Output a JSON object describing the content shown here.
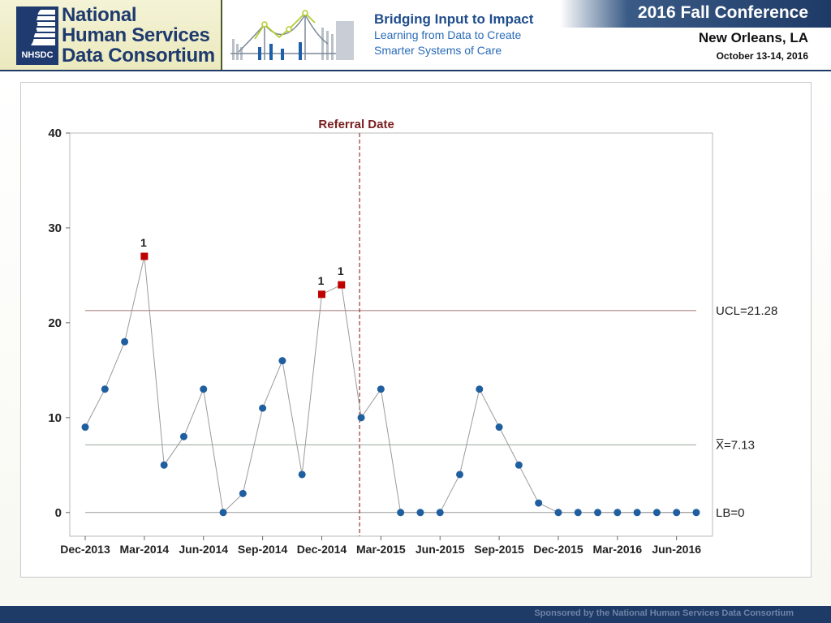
{
  "header": {
    "logo_lines": [
      "National",
      "Human Services",
      "Data Consortium"
    ],
    "logo_badge": "NHSDC",
    "tagline_title": "Bridging Input to Impact",
    "tagline_line2": "Learning from Data to Create",
    "tagline_line3": "Smarter Systems of Care",
    "conference_title": "2016 Fall Conference",
    "location": "New Orleans, LA",
    "dates": "October 13-14, 2016"
  },
  "footer": {
    "text": "Sponsored by the National Human Services Data Consortium"
  },
  "chart_data": {
    "type": "line",
    "title": "",
    "xlabel": "",
    "ylabel": "",
    "ylim": [
      -2.5,
      40
    ],
    "yticks": [
      0,
      10,
      20,
      30,
      40
    ],
    "x_ticks": [
      {
        "label": "Dec-2013",
        "index": 0
      },
      {
        "label": "Mar-2014",
        "index": 3
      },
      {
        "label": "Jun-2014",
        "index": 6
      },
      {
        "label": "Sep-2014",
        "index": 9
      },
      {
        "label": "Dec-2014",
        "index": 12
      },
      {
        "label": "Mar-2015",
        "index": 15
      },
      {
        "label": "Jun-2015",
        "index": 18
      },
      {
        "label": "Sep-2015",
        "index": 21
      },
      {
        "label": "Dec-2015",
        "index": 24
      },
      {
        "label": "Mar-2016",
        "index": 27
      },
      {
        "label": "Jun-2016",
        "index": 30
      }
    ],
    "values": [
      9,
      13,
      18,
      27,
      5,
      8,
      13,
      0,
      2,
      11,
      16,
      4,
      23,
      24,
      10,
      13,
      0,
      0,
      0,
      4,
      13,
      9,
      5,
      1,
      0,
      0,
      0,
      0,
      0,
      0,
      0,
      0
    ],
    "flagged": [
      {
        "index": 3,
        "label": "1"
      },
      {
        "index": 12,
        "label": "1"
      },
      {
        "index": 13,
        "label": "1"
      }
    ],
    "control_lines": [
      {
        "name": "UCL",
        "value": 21.28,
        "label": "UCL=21.28"
      },
      {
        "name": "Mean",
        "value": 7.13,
        "label": "X̅=7.13"
      },
      {
        "name": "LB",
        "value": 0,
        "label": "LB=0"
      }
    ],
    "referral": {
      "label": "Referral Date",
      "position_index": 14.0
    },
    "colors": {
      "point": "#1f5fa0",
      "flagged": "#c00000",
      "line": "#9a9a9a",
      "control": "#a07070",
      "center": "#9aa89a",
      "referral": "#a03030"
    }
  }
}
